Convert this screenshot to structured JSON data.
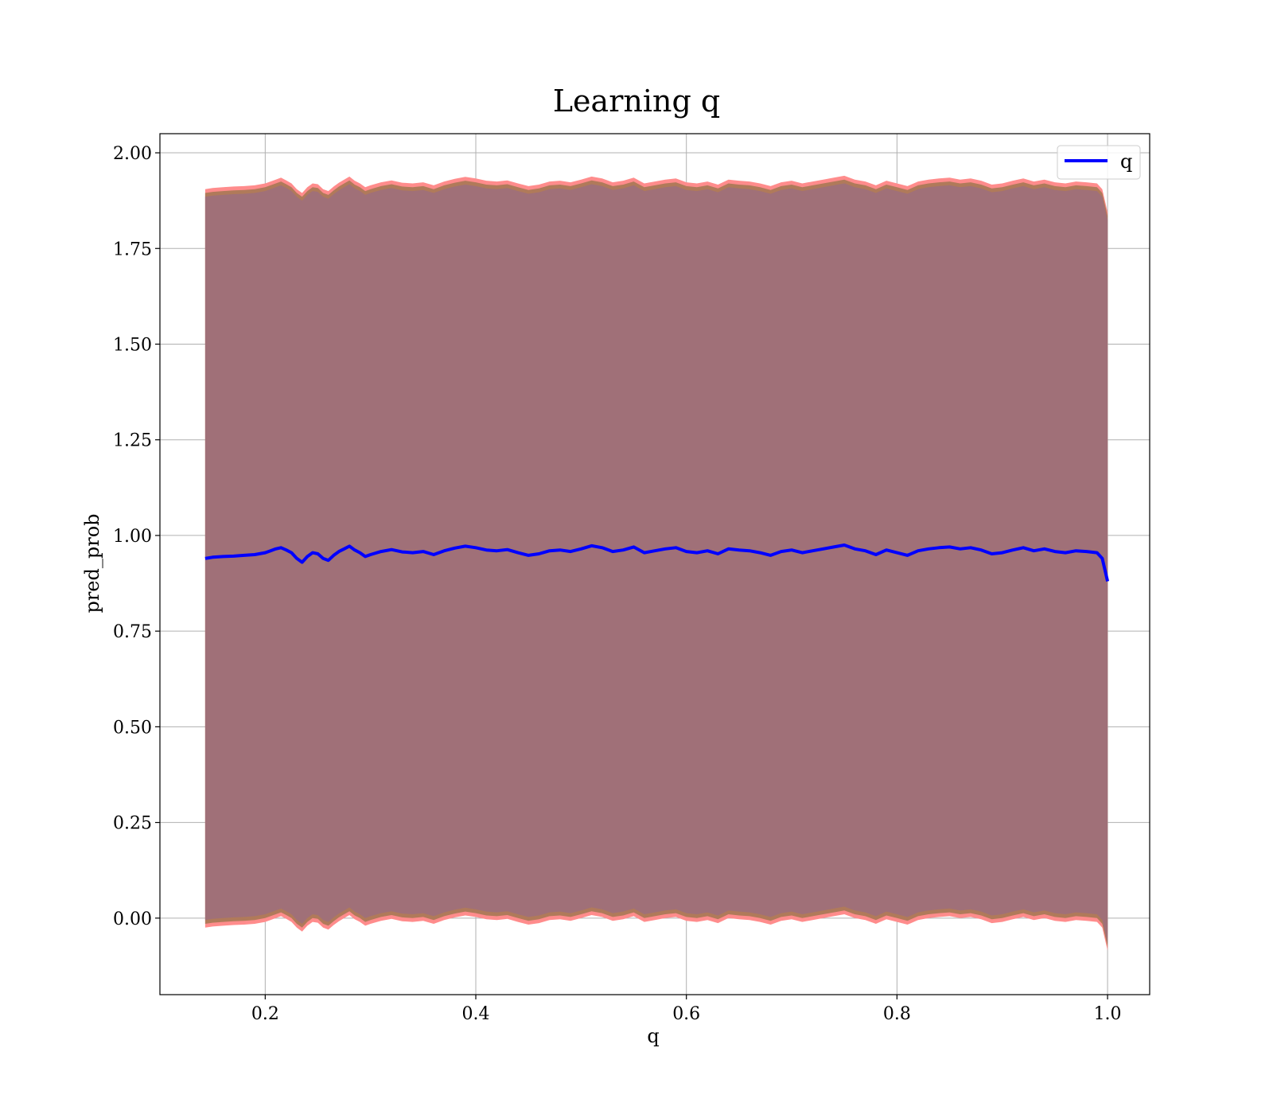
{
  "chart_data": {
    "type": "line",
    "title": "Learning q",
    "xlabel": "q",
    "ylabel": "pred_prob",
    "xlim": [
      0.1,
      1.04
    ],
    "ylim": [
      -0.2,
      2.05
    ],
    "xticks": [
      0.2,
      0.4,
      0.6,
      0.8,
      1.0
    ],
    "xtick_labels": [
      "0.2",
      "0.4",
      "0.6",
      "0.8",
      "1.0"
    ],
    "yticks": [
      0.0,
      0.25,
      0.5,
      0.75,
      1.0,
      1.25,
      1.5,
      1.75,
      2.0
    ],
    "ytick_labels": [
      "0.00",
      "0.25",
      "0.50",
      "0.75",
      "1.00",
      "1.25",
      "1.50",
      "1.75",
      "2.00"
    ],
    "grid": true,
    "legend_position": "top-right",
    "series": [
      {
        "name": "q",
        "color": "#0000ff",
        "x": [
          0.143,
          0.15,
          0.16,
          0.17,
          0.18,
          0.19,
          0.2,
          0.205,
          0.21,
          0.215,
          0.22,
          0.225,
          0.23,
          0.235,
          0.24,
          0.245,
          0.25,
          0.255,
          0.26,
          0.265,
          0.27,
          0.275,
          0.28,
          0.285,
          0.29,
          0.295,
          0.3,
          0.31,
          0.32,
          0.33,
          0.34,
          0.35,
          0.36,
          0.37,
          0.38,
          0.39,
          0.4,
          0.41,
          0.42,
          0.43,
          0.44,
          0.45,
          0.46,
          0.47,
          0.48,
          0.49,
          0.5,
          0.51,
          0.52,
          0.53,
          0.54,
          0.55,
          0.56,
          0.57,
          0.58,
          0.59,
          0.6,
          0.61,
          0.62,
          0.63,
          0.64,
          0.65,
          0.66,
          0.67,
          0.68,
          0.69,
          0.7,
          0.71,
          0.72,
          0.73,
          0.74,
          0.75,
          0.76,
          0.77,
          0.78,
          0.79,
          0.8,
          0.81,
          0.82,
          0.83,
          0.84,
          0.85,
          0.86,
          0.87,
          0.88,
          0.89,
          0.9,
          0.91,
          0.92,
          0.93,
          0.94,
          0.95,
          0.96,
          0.97,
          0.98,
          0.99,
          0.995,
          1.0
        ],
        "y": [
          0.94,
          0.943,
          0.945,
          0.946,
          0.948,
          0.95,
          0.955,
          0.96,
          0.965,
          0.968,
          0.962,
          0.955,
          0.94,
          0.93,
          0.945,
          0.955,
          0.952,
          0.94,
          0.935,
          0.948,
          0.958,
          0.965,
          0.972,
          0.962,
          0.955,
          0.945,
          0.95,
          0.958,
          0.963,
          0.957,
          0.955,
          0.958,
          0.95,
          0.96,
          0.967,
          0.972,
          0.968,
          0.962,
          0.96,
          0.963,
          0.955,
          0.948,
          0.952,
          0.96,
          0.962,
          0.958,
          0.965,
          0.973,
          0.968,
          0.958,
          0.962,
          0.97,
          0.955,
          0.96,
          0.965,
          0.968,
          0.958,
          0.955,
          0.96,
          0.952,
          0.965,
          0.962,
          0.96,
          0.955,
          0.948,
          0.958,
          0.962,
          0.955,
          0.96,
          0.965,
          0.97,
          0.975,
          0.965,
          0.96,
          0.95,
          0.962,
          0.955,
          0.948,
          0.96,
          0.965,
          0.968,
          0.97,
          0.965,
          0.968,
          0.962,
          0.952,
          0.955,
          0.962,
          0.968,
          0.96,
          0.965,
          0.958,
          0.955,
          0.96,
          0.958,
          0.955,
          0.94,
          0.88
        ]
      }
    ],
    "bands": [
      {
        "role": "outer",
        "color": "#ff8c8c",
        "upper": [
          1.905,
          1.908,
          1.91,
          1.912,
          1.913,
          1.915,
          1.92,
          1.925,
          1.93,
          1.935,
          1.928,
          1.92,
          1.905,
          1.895,
          1.91,
          1.92,
          1.918,
          1.905,
          1.9,
          1.912,
          1.922,
          1.93,
          1.938,
          1.927,
          1.92,
          1.91,
          1.915,
          1.923,
          1.928,
          1.922,
          1.92,
          1.923,
          1.915,
          1.925,
          1.932,
          1.937,
          1.933,
          1.927,
          1.925,
          1.928,
          1.92,
          1.913,
          1.917,
          1.925,
          1.927,
          1.923,
          1.93,
          1.938,
          1.933,
          1.923,
          1.927,
          1.935,
          1.92,
          1.925,
          1.93,
          1.933,
          1.923,
          1.92,
          1.925,
          1.917,
          1.93,
          1.927,
          1.925,
          1.92,
          1.913,
          1.923,
          1.927,
          1.92,
          1.925,
          1.93,
          1.935,
          1.94,
          1.93,
          1.925,
          1.915,
          1.927,
          1.92,
          1.913,
          1.925,
          1.93,
          1.933,
          1.935,
          1.93,
          1.933,
          1.927,
          1.917,
          1.92,
          1.927,
          1.933,
          1.925,
          1.93,
          1.923,
          1.92,
          1.925,
          1.923,
          1.92,
          1.905,
          1.845
        ],
        "lower": [
          -0.025,
          -0.022,
          -0.02,
          -0.018,
          -0.017,
          -0.015,
          -0.01,
          -0.005,
          0.0,
          0.005,
          -0.002,
          -0.01,
          -0.025,
          -0.035,
          -0.02,
          -0.01,
          -0.012,
          -0.025,
          -0.03,
          -0.018,
          -0.008,
          0.0,
          0.008,
          -0.003,
          -0.01,
          -0.02,
          -0.015,
          -0.007,
          -0.002,
          -0.008,
          -0.01,
          -0.007,
          -0.015,
          -0.005,
          0.002,
          0.007,
          0.003,
          -0.003,
          -0.005,
          -0.002,
          -0.01,
          -0.017,
          -0.013,
          -0.005,
          -0.003,
          -0.007,
          0.0,
          0.008,
          0.003,
          -0.007,
          -0.003,
          0.005,
          -0.01,
          -0.005,
          0.0,
          0.003,
          -0.007,
          -0.01,
          -0.005,
          -0.013,
          0.0,
          -0.003,
          -0.005,
          -0.01,
          -0.017,
          -0.007,
          -0.003,
          -0.01,
          -0.005,
          0.0,
          0.005,
          0.01,
          0.0,
          -0.005,
          -0.015,
          -0.003,
          -0.01,
          -0.017,
          -0.005,
          0.0,
          0.003,
          0.005,
          0.0,
          0.003,
          -0.003,
          -0.013,
          -0.01,
          -0.003,
          0.003,
          -0.005,
          0.0,
          -0.007,
          -0.01,
          -0.005,
          -0.007,
          -0.01,
          -0.025,
          -0.085
        ]
      },
      {
        "role": "middle",
        "color": "#b07a5a",
        "upper": [
          1.895,
          1.898,
          1.9,
          1.902,
          1.903,
          1.905,
          1.91,
          1.915,
          1.92,
          1.925,
          1.918,
          1.91,
          1.895,
          1.885,
          1.9,
          1.91,
          1.908,
          1.895,
          1.89,
          1.902,
          1.912,
          1.92,
          1.928,
          1.917,
          1.91,
          1.9,
          1.905,
          1.913,
          1.918,
          1.912,
          1.91,
          1.913,
          1.905,
          1.915,
          1.922,
          1.927,
          1.923,
          1.917,
          1.915,
          1.918,
          1.91,
          1.903,
          1.907,
          1.915,
          1.917,
          1.913,
          1.92,
          1.928,
          1.923,
          1.913,
          1.917,
          1.925,
          1.91,
          1.915,
          1.92,
          1.923,
          1.913,
          1.91,
          1.915,
          1.907,
          1.92,
          1.917,
          1.915,
          1.91,
          1.903,
          1.913,
          1.917,
          1.91,
          1.915,
          1.92,
          1.925,
          1.93,
          1.92,
          1.915,
          1.905,
          1.917,
          1.91,
          1.903,
          1.915,
          1.92,
          1.923,
          1.925,
          1.92,
          1.923,
          1.917,
          1.907,
          1.91,
          1.917,
          1.923,
          1.915,
          1.92,
          1.913,
          1.91,
          1.915,
          1.913,
          1.91,
          1.895,
          1.835
        ],
        "lower": [
          -0.015,
          -0.012,
          -0.01,
          -0.008,
          -0.007,
          -0.005,
          0.0,
          0.005,
          0.01,
          0.015,
          0.008,
          0.0,
          -0.015,
          -0.025,
          -0.01,
          0.0,
          -0.002,
          -0.015,
          -0.02,
          -0.008,
          0.002,
          0.01,
          0.018,
          0.007,
          0.0,
          -0.01,
          -0.005,
          0.003,
          0.008,
          0.002,
          0.0,
          0.003,
          -0.005,
          0.005,
          0.012,
          0.017,
          0.013,
          0.007,
          0.005,
          0.008,
          0.0,
          -0.007,
          -0.003,
          0.005,
          0.007,
          0.003,
          0.01,
          0.018,
          0.013,
          0.003,
          0.007,
          0.015,
          0.0,
          0.005,
          0.01,
          0.013,
          0.003,
          0.0,
          0.005,
          -0.003,
          0.01,
          0.007,
          0.005,
          0.0,
          -0.007,
          0.003,
          0.007,
          0.0,
          0.005,
          0.01,
          0.015,
          0.02,
          0.01,
          0.005,
          -0.005,
          0.007,
          0.0,
          -0.007,
          0.005,
          0.01,
          0.013,
          0.015,
          0.01,
          0.013,
          0.007,
          -0.003,
          0.0,
          0.007,
          0.013,
          0.005,
          0.01,
          0.003,
          0.0,
          0.005,
          0.003,
          0.0,
          -0.015,
          -0.075
        ]
      },
      {
        "role": "inner",
        "color": "#a07078",
        "upper": [
          1.885,
          1.888,
          1.89,
          1.892,
          1.893,
          1.895,
          1.9,
          1.905,
          1.91,
          1.915,
          1.908,
          1.9,
          1.885,
          1.875,
          1.89,
          1.9,
          1.898,
          1.885,
          1.88,
          1.892,
          1.902,
          1.91,
          1.918,
          1.907,
          1.9,
          1.89,
          1.895,
          1.903,
          1.908,
          1.902,
          1.9,
          1.903,
          1.895,
          1.905,
          1.912,
          1.917,
          1.913,
          1.907,
          1.905,
          1.908,
          1.9,
          1.893,
          1.897,
          1.905,
          1.907,
          1.903,
          1.91,
          1.918,
          1.913,
          1.903,
          1.907,
          1.915,
          1.9,
          1.905,
          1.91,
          1.913,
          1.903,
          1.9,
          1.905,
          1.897,
          1.91,
          1.907,
          1.905,
          1.9,
          1.893,
          1.903,
          1.907,
          1.9,
          1.905,
          1.91,
          1.915,
          1.92,
          1.91,
          1.905,
          1.895,
          1.907,
          1.9,
          1.893,
          1.905,
          1.91,
          1.913,
          1.915,
          1.91,
          1.913,
          1.907,
          1.897,
          1.9,
          1.907,
          1.913,
          1.905,
          1.91,
          1.903,
          1.9,
          1.905,
          1.903,
          1.9,
          1.885,
          1.825
        ],
        "lower": [
          -0.005,
          -0.002,
          0.0,
          0.002,
          0.003,
          0.005,
          0.01,
          0.015,
          0.02,
          0.025,
          0.018,
          0.01,
          -0.005,
          -0.015,
          0.0,
          0.01,
          0.008,
          -0.005,
          -0.01,
          0.002,
          0.012,
          0.02,
          0.028,
          0.017,
          0.01,
          0.0,
          0.005,
          0.013,
          0.018,
          0.012,
          0.01,
          0.013,
          0.005,
          0.015,
          0.022,
          0.027,
          0.023,
          0.017,
          0.015,
          0.018,
          0.01,
          0.003,
          0.007,
          0.015,
          0.017,
          0.013,
          0.02,
          0.028,
          0.023,
          0.013,
          0.017,
          0.025,
          0.01,
          0.015,
          0.02,
          0.023,
          0.013,
          0.01,
          0.015,
          0.007,
          0.02,
          0.017,
          0.015,
          0.01,
          0.003,
          0.013,
          0.017,
          0.01,
          0.015,
          0.02,
          0.025,
          0.03,
          0.02,
          0.015,
          0.005,
          0.017,
          0.01,
          0.003,
          0.015,
          0.02,
          0.023,
          0.025,
          0.02,
          0.023,
          0.017,
          0.007,
          0.01,
          0.017,
          0.023,
          0.015,
          0.02,
          0.013,
          0.01,
          0.015,
          0.013,
          0.01,
          -0.005,
          -0.065
        ]
      }
    ]
  }
}
